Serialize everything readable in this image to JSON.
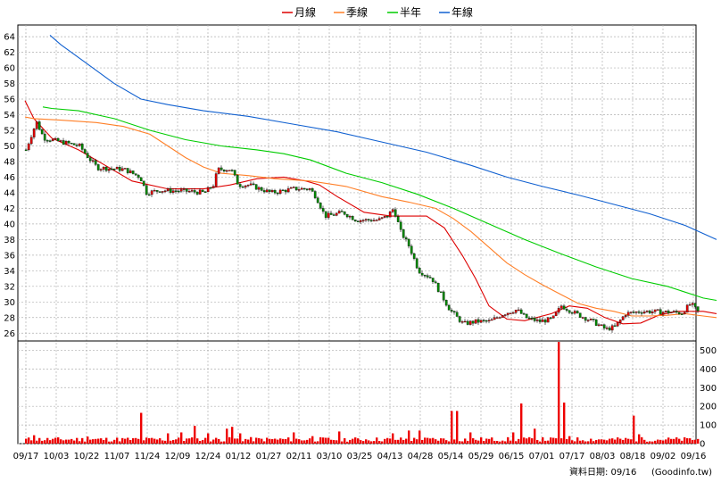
{
  "chart_data": {
    "type": "candlestick",
    "legend": [
      {
        "name": "月線",
        "color": "#dd0000"
      },
      {
        "name": "季線",
        "color": "#ff7f27"
      },
      {
        "name": "半年",
        "color": "#00cc00"
      },
      {
        "name": "年線",
        "color": "#1060d0"
      }
    ],
    "price_axis": {
      "ylim": [
        25,
        65.5
      ],
      "ticks": [
        26,
        28,
        30,
        32,
        34,
        36,
        38,
        40,
        42,
        44,
        46,
        48,
        50,
        52,
        54,
        56,
        58,
        60,
        62,
        64
      ]
    },
    "volume_axis": {
      "ylim": [
        0,
        550
      ],
      "ticks": [
        0,
        100,
        200,
        300,
        400,
        500
      ]
    },
    "x_labels": [
      "09/17",
      "10/03",
      "10/22",
      "11/07",
      "11/24",
      "12/09",
      "12/24",
      "01/12",
      "01/27",
      "02/11",
      "03/10",
      "03/25",
      "04/13",
      "04/28",
      "05/14",
      "05/29",
      "06/15",
      "07/01",
      "07/17",
      "08/03",
      "08/18",
      "09/02",
      "09/16"
    ],
    "ma_lines": {
      "月線": [
        [
          0,
          55.8
        ],
        [
          10,
          53.5
        ],
        [
          30,
          51
        ],
        [
          60,
          49.5
        ],
        [
          90,
          47.5
        ],
        [
          120,
          45.5
        ],
        [
          160,
          44.5
        ],
        [
          200,
          44.5
        ],
        [
          230,
          45
        ],
        [
          260,
          45.8
        ],
        [
          290,
          46
        ],
        [
          315,
          45.5
        ],
        [
          330,
          45
        ],
        [
          350,
          43.5
        ],
        [
          380,
          41.5
        ],
        [
          410,
          41
        ],
        [
          430,
          41
        ],
        [
          450,
          41
        ],
        [
          470,
          39.5
        ],
        [
          490,
          36
        ],
        [
          505,
          33
        ],
        [
          520,
          29.5
        ],
        [
          540,
          27.8
        ],
        [
          560,
          27.6
        ],
        [
          590,
          28.5
        ],
        [
          610,
          29.5
        ],
        [
          630,
          29.2
        ],
        [
          650,
          28
        ],
        [
          670,
          27.2
        ],
        [
          690,
          27.3
        ],
        [
          710,
          28.3
        ],
        [
          730,
          28.8
        ],
        [
          760,
          28.8
        ],
        [
          775,
          28.5
        ]
      ],
      "季線": [
        [
          0,
          53.7
        ],
        [
          10,
          53.5
        ],
        [
          40,
          53.3
        ],
        [
          80,
          53
        ],
        [
          110,
          52.5
        ],
        [
          140,
          51.5
        ],
        [
          160,
          50
        ],
        [
          180,
          48.5
        ],
        [
          200,
          47.3
        ],
        [
          220,
          46.5
        ],
        [
          250,
          46.2
        ],
        [
          280,
          45.8
        ],
        [
          320,
          45.5
        ],
        [
          360,
          44.8
        ],
        [
          400,
          43.5
        ],
        [
          430,
          42.8
        ],
        [
          460,
          42
        ],
        [
          480,
          40.7
        ],
        [
          500,
          39
        ],
        [
          520,
          37
        ],
        [
          540,
          35
        ],
        [
          560,
          33.5
        ],
        [
          580,
          32.2
        ],
        [
          600,
          31
        ],
        [
          620,
          29.8
        ],
        [
          640,
          29.2
        ],
        [
          660,
          28.8
        ],
        [
          680,
          28.2
        ],
        [
          700,
          28.2
        ],
        [
          720,
          28.3
        ],
        [
          740,
          28.5
        ],
        [
          760,
          28.2
        ],
        [
          775,
          28
        ]
      ],
      "半年": [
        [
          20,
          55
        ],
        [
          30,
          54.8
        ],
        [
          60,
          54.5
        ],
        [
          100,
          53.5
        ],
        [
          140,
          52
        ],
        [
          180,
          50.8
        ],
        [
          220,
          50
        ],
        [
          260,
          49.5
        ],
        [
          290,
          49
        ],
        [
          320,
          48.2
        ],
        [
          360,
          46.5
        ],
        [
          400,
          45.3
        ],
        [
          440,
          43.8
        ],
        [
          480,
          42
        ],
        [
          520,
          40
        ],
        [
          560,
          38
        ],
        [
          600,
          36.2
        ],
        [
          640,
          34.5
        ],
        [
          680,
          33
        ],
        [
          720,
          32
        ],
        [
          760,
          30.5
        ],
        [
          775,
          30.2
        ]
      ],
      "年線": [
        [
          28,
          64.2
        ],
        [
          40,
          63
        ],
        [
          70,
          60.5
        ],
        [
          100,
          58
        ],
        [
          130,
          56
        ],
        [
          160,
          55.3
        ],
        [
          200,
          54.5
        ],
        [
          250,
          53.8
        ],
        [
          300,
          52.8
        ],
        [
          350,
          51.8
        ],
        [
          400,
          50.5
        ],
        [
          450,
          49.2
        ],
        [
          500,
          47.5
        ],
        [
          540,
          46
        ],
        [
          580,
          44.8
        ],
        [
          620,
          43.7
        ],
        [
          660,
          42.5
        ],
        [
          700,
          41.3
        ],
        [
          740,
          39.8
        ],
        [
          775,
          38
        ]
      ]
    }
  },
  "footer": {
    "date_label": "資料日期: 09/16",
    "source_label": "(Goodinfo.tw)"
  }
}
